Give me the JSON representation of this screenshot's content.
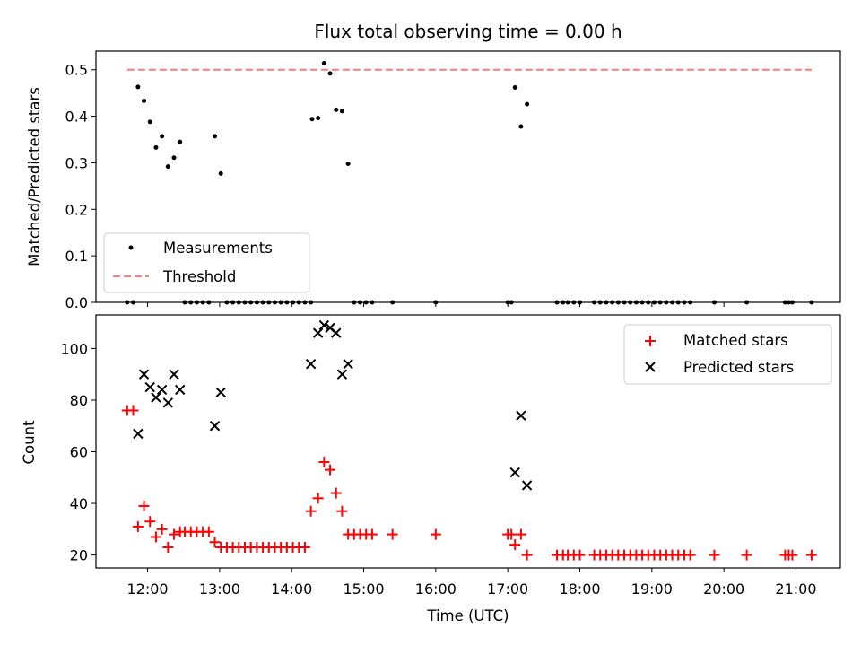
{
  "chart_data": {
    "title": "Flux total observing time = 0.00 h",
    "xlabel": "Time (UTC)",
    "x_ticks": [
      "12:00",
      "13:00",
      "14:00",
      "15:00",
      "16:00",
      "17:00",
      "18:00",
      "19:00",
      "20:00",
      "21:00"
    ],
    "x_range": [
      "11:17",
      "21:37"
    ],
    "panels": [
      {
        "type": "scatter",
        "ylabel": "Matched/Predicted stars",
        "ylim": [
          0,
          0.54
        ],
        "y_ticks": [
          "0.0",
          "0.1",
          "0.2",
          "0.3",
          "0.4",
          "0.5"
        ],
        "legend_position": "lower-left",
        "series": [
          {
            "name": "Measurements",
            "color": "#000000",
            "marker": "dot",
            "points": [
              [
                "11:43",
                0
              ],
              [
                "11:48",
                0
              ],
              [
                "11:52",
                0.463
              ],
              [
                "11:57",
                0.433
              ],
              [
                "12:02",
                0.388
              ],
              [
                "12:07",
                0.333
              ],
              [
                "12:12",
                0.357
              ],
              [
                "12:17",
                0.292
              ],
              [
                "12:22",
                0.311
              ],
              [
                "12:27",
                0.345
              ],
              [
                "12:31",
                0
              ],
              [
                "12:36",
                0
              ],
              [
                "12:41",
                0
              ],
              [
                "12:46",
                0
              ],
              [
                "12:51",
                0
              ],
              [
                "12:56",
                0.357
              ],
              [
                "13:01",
                0.277
              ],
              [
                "13:06",
                0
              ],
              [
                "13:11",
                0
              ],
              [
                "13:16",
                0
              ],
              [
                "13:21",
                0
              ],
              [
                "13:26",
                0
              ],
              [
                "13:31",
                0
              ],
              [
                "13:36",
                0
              ],
              [
                "13:41",
                0
              ],
              [
                "13:46",
                0
              ],
              [
                "13:51",
                0
              ],
              [
                "13:56",
                0
              ],
              [
                "14:01",
                0
              ],
              [
                "14:06",
                0
              ],
              [
                "14:11",
                0
              ],
              [
                "14:16",
                0
              ],
              [
                "14:17",
                0.394
              ],
              [
                "14:22",
                0.396
              ],
              [
                "14:27",
                0.514
              ],
              [
                "14:32",
                0.492
              ],
              [
                "14:37",
                0.414
              ],
              [
                "14:42",
                0.411
              ],
              [
                "14:47",
                0.298
              ],
              [
                "14:52",
                0
              ],
              [
                "14:57",
                0
              ],
              [
                "15:02",
                0
              ],
              [
                "15:07",
                0
              ],
              [
                "15:24",
                0
              ],
              [
                "16:00",
                0
              ],
              [
                "17:00",
                0
              ],
              [
                "17:03",
                0
              ],
              [
                "17:06",
                0.462
              ],
              [
                "17:11",
                0.378
              ],
              [
                "17:16",
                0.426
              ],
              [
                "17:41",
                0
              ],
              [
                "17:46",
                0
              ],
              [
                "17:50",
                0
              ],
              [
                "17:55",
                0
              ],
              [
                "18:00",
                0
              ],
              [
                "18:12",
                0
              ],
              [
                "18:17",
                0
              ],
              [
                "18:22",
                0
              ],
              [
                "18:27",
                0
              ],
              [
                "18:32",
                0
              ],
              [
                "18:37",
                0
              ],
              [
                "18:42",
                0
              ],
              [
                "18:47",
                0
              ],
              [
                "18:52",
                0
              ],
              [
                "18:57",
                0
              ],
              [
                "19:02",
                0
              ],
              [
                "19:07",
                0
              ],
              [
                "19:12",
                0
              ],
              [
                "19:17",
                0
              ],
              [
                "19:22",
                0
              ],
              [
                "19:27",
                0
              ],
              [
                "19:32",
                0
              ],
              [
                "19:52",
                0
              ],
              [
                "20:19",
                0
              ],
              [
                "20:51",
                0
              ],
              [
                "20:54",
                0
              ],
              [
                "20:57",
                0
              ],
              [
                "21:13",
                0
              ]
            ]
          },
          {
            "name": "Threshold",
            "color": "#ff7a7a",
            "marker": "dashed-line",
            "points": [
              [
                "11:43",
                0.5
              ],
              [
                "21:13",
                0.5
              ]
            ]
          }
        ]
      },
      {
        "type": "scatter",
        "ylabel": "Count",
        "ylim": [
          15,
          113
        ],
        "y_ticks": [
          "20",
          "40",
          "60",
          "80",
          "100"
        ],
        "legend_position": "upper-right",
        "series": [
          {
            "name": "Matched stars",
            "color": "#ff0000",
            "marker": "plus",
            "points": [
              [
                "11:43",
                76
              ],
              [
                "11:48",
                76
              ],
              [
                "11:52",
                31
              ],
              [
                "11:57",
                39
              ],
              [
                "12:02",
                33
              ],
              [
                "12:07",
                27
              ],
              [
                "12:12",
                30
              ],
              [
                "12:17",
                23
              ],
              [
                "12:22",
                28
              ],
              [
                "12:27",
                29
              ],
              [
                "12:31",
                29
              ],
              [
                "12:36",
                29
              ],
              [
                "12:41",
                29
              ],
              [
                "12:46",
                29
              ],
              [
                "12:51",
                29
              ],
              [
                "12:56",
                25
              ],
              [
                "13:01",
                23
              ],
              [
                "13:06",
                23
              ],
              [
                "13:11",
                23
              ],
              [
                "13:16",
                23
              ],
              [
                "13:21",
                23
              ],
              [
                "13:26",
                23
              ],
              [
                "13:31",
                23
              ],
              [
                "13:36",
                23
              ],
              [
                "13:41",
                23
              ],
              [
                "13:46",
                23
              ],
              [
                "13:51",
                23
              ],
              [
                "13:56",
                23
              ],
              [
                "14:01",
                23
              ],
              [
                "14:06",
                23
              ],
              [
                "14:11",
                23
              ],
              [
                "14:16",
                37
              ],
              [
                "14:22",
                42
              ],
              [
                "14:27",
                56
              ],
              [
                "14:32",
                53
              ],
              [
                "14:37",
                44
              ],
              [
                "14:42",
                37
              ],
              [
                "14:47",
                28
              ],
              [
                "14:52",
                28
              ],
              [
                "14:57",
                28
              ],
              [
                "15:02",
                28
              ],
              [
                "15:07",
                28
              ],
              [
                "15:24",
                28
              ],
              [
                "16:00",
                28
              ],
              [
                "17:00",
                28
              ],
              [
                "17:03",
                28
              ],
              [
                "17:06",
                24
              ],
              [
                "17:11",
                28
              ],
              [
                "17:16",
                20
              ],
              [
                "17:41",
                20
              ],
              [
                "17:46",
                20
              ],
              [
                "17:50",
                20
              ],
              [
                "17:55",
                20
              ],
              [
                "18:00",
                20
              ],
              [
                "18:12",
                20
              ],
              [
                "18:17",
                20
              ],
              [
                "18:22",
                20
              ],
              [
                "18:27",
                20
              ],
              [
                "18:32",
                20
              ],
              [
                "18:37",
                20
              ],
              [
                "18:42",
                20
              ],
              [
                "18:47",
                20
              ],
              [
                "18:52",
                20
              ],
              [
                "18:57",
                20
              ],
              [
                "19:02",
                20
              ],
              [
                "19:07",
                20
              ],
              [
                "19:12",
                20
              ],
              [
                "19:17",
                20
              ],
              [
                "19:22",
                20
              ],
              [
                "19:27",
                20
              ],
              [
                "19:32",
                20
              ],
              [
                "19:52",
                20
              ],
              [
                "20:19",
                20
              ],
              [
                "20:51",
                20
              ],
              [
                "20:54",
                20
              ],
              [
                "20:57",
                20
              ],
              [
                "21:13",
                20
              ]
            ]
          },
          {
            "name": "Predicted stars",
            "color": "#000000",
            "marker": "x",
            "points": [
              [
                "11:52",
                67
              ],
              [
                "11:57",
                90
              ],
              [
                "12:02",
                85
              ],
              [
                "12:07",
                81
              ],
              [
                "12:12",
                84
              ],
              [
                "12:17",
                79
              ],
              [
                "12:22",
                90
              ],
              [
                "12:27",
                84
              ],
              [
                "12:56",
                70
              ],
              [
                "13:01",
                83
              ],
              [
                "14:16",
                94
              ],
              [
                "14:22",
                106
              ],
              [
                "14:27",
                109
              ],
              [
                "14:32",
                108
              ],
              [
                "14:37",
                106
              ],
              [
                "14:42",
                90
              ],
              [
                "14:47",
                94
              ],
              [
                "17:06",
                52
              ],
              [
                "17:11",
                74
              ],
              [
                "17:16",
                47
              ]
            ]
          }
        ]
      }
    ]
  }
}
